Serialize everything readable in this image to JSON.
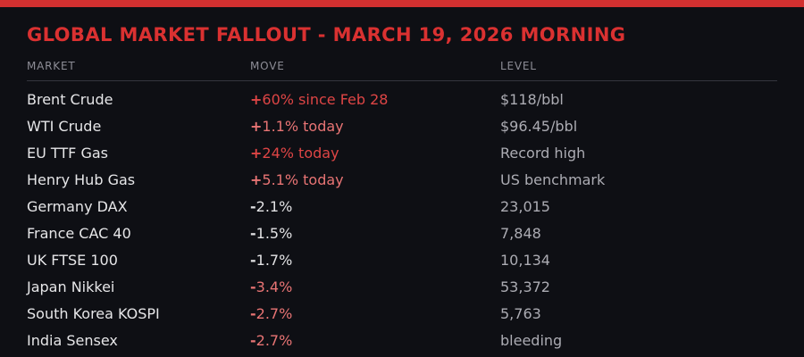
{
  "title": "GLOBAL MARKET FALLOUT - MARCH 19, 2026 MORNING",
  "chart_data": {
    "type": "table",
    "title": "GLOBAL MARKET FALLOUT - MARCH 19, 2026 MORNING",
    "columns": [
      "MARKET",
      "MOVE",
      "LEVEL"
    ],
    "rows": [
      {
        "market": "Brent Crude",
        "move": "+60% since Feb 28",
        "move_sign": "+",
        "move_body": "60% since Feb 28",
        "level": "$118/bbl",
        "tone": "strong"
      },
      {
        "market": "WTI Crude",
        "move": "+1.1% today",
        "move_sign": "+",
        "move_body": "1.1% today",
        "level": "$96.45/bbl",
        "tone": "soft"
      },
      {
        "market": "EU TTF Gas",
        "move": "+24% today",
        "move_sign": "+",
        "move_body": "24% today",
        "level": "Record high",
        "tone": "strong"
      },
      {
        "market": "Henry Hub Gas",
        "move": "+5.1% today",
        "move_sign": "+",
        "move_body": "5.1% today",
        "level": "US benchmark",
        "tone": "soft"
      },
      {
        "market": "Germany DAX",
        "move": "-2.1%",
        "move_sign": "-",
        "move_body": "2.1%",
        "level": "23,015",
        "tone": "neutral"
      },
      {
        "market": "France CAC 40",
        "move": "-1.5%",
        "move_sign": "-",
        "move_body": "1.5%",
        "level": "7,848",
        "tone": "neutral"
      },
      {
        "market": "UK FTSE 100",
        "move": "-1.7%",
        "move_sign": "-",
        "move_body": "1.7%",
        "level": "10,134",
        "tone": "neutral"
      },
      {
        "market": "Japan Nikkei",
        "move": "-3.4%",
        "move_sign": "-",
        "move_body": "3.4%",
        "level": "53,372",
        "tone": "soft"
      },
      {
        "market": "South Korea KOSPI",
        "move": "-2.7%",
        "move_sign": "-",
        "move_body": "2.7%",
        "level": "5,763",
        "tone": "soft"
      },
      {
        "market": "India Sensex",
        "move": "-2.7%",
        "move_sign": "-",
        "move_body": "2.7%",
        "level": "bleeding",
        "tone": "soft"
      }
    ]
  },
  "colors": {
    "background": "#0e0f14",
    "top_bar": "#d23030",
    "title": "#da3131",
    "column_header": "#8d8d96",
    "divider": "#35353e",
    "market_text": "#e6e6e8",
    "level_text": "#acacb3",
    "move_neutral": "#e2e2e4",
    "move_red_strong": "#de4545",
    "move_red_soft": "#e87474"
  }
}
